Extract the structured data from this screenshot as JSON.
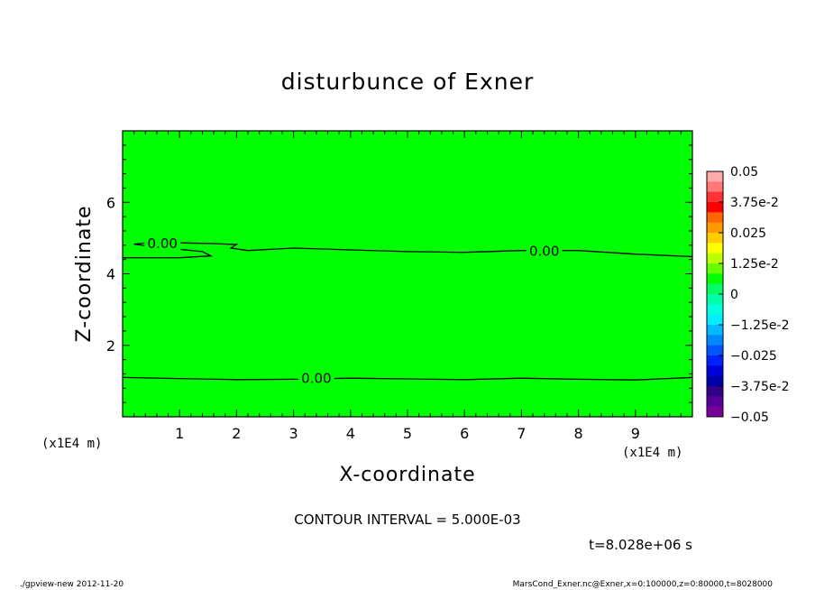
{
  "chart_data": {
    "type": "heatmap",
    "title": "disturbunce of Exner",
    "xlabel": "X-coordinate",
    "ylabel": "Z-coordinate",
    "x_unit": "(x1E4 m)",
    "y_unit": "(x1E4 m)",
    "xlim": [
      0,
      10
    ],
    "ylim": [
      0,
      8
    ],
    "xticks": [
      "1",
      "2",
      "3",
      "4",
      "5",
      "6",
      "7",
      "8",
      "9"
    ],
    "yticks": [
      "2",
      "4",
      "6"
    ],
    "field_value": 0,
    "field_color": "#00ff00",
    "contour_interval_text": "CONTOUR INTERVAL = 5.000E-03",
    "contours": [
      {
        "label": "0.00",
        "points": [
          [
            0.0,
            1.1
          ],
          [
            1.0,
            1.07
          ],
          [
            2.0,
            1.04
          ],
          [
            3.0,
            1.05
          ],
          [
            4.0,
            1.08
          ],
          [
            5.0,
            1.06
          ],
          [
            6.0,
            1.04
          ],
          [
            7.0,
            1.08
          ],
          [
            8.0,
            1.05
          ],
          [
            9.0,
            1.03
          ],
          [
            10.0,
            1.1
          ]
        ]
      },
      {
        "label": "0.00",
        "points": [
          [
            0.0,
            4.45
          ],
          [
            1.0,
            4.45
          ],
          [
            1.55,
            4.5
          ],
          [
            1.4,
            4.62
          ],
          [
            0.6,
            4.75
          ],
          [
            0.2,
            4.83
          ],
          [
            0.5,
            4.88
          ],
          [
            1.5,
            4.85
          ],
          [
            2.0,
            4.82
          ],
          [
            1.9,
            4.72
          ],
          [
            2.2,
            4.65
          ],
          [
            3.0,
            4.72
          ],
          [
            4.0,
            4.67
          ],
          [
            5.0,
            4.62
          ],
          [
            6.0,
            4.6
          ],
          [
            7.0,
            4.65
          ],
          [
            8.0,
            4.65
          ],
          [
            9.0,
            4.55
          ],
          [
            10.0,
            4.48
          ]
        ]
      }
    ],
    "colorbar": {
      "labels": [
        "0.05",
        "3.75e-2",
        "0.025",
        "1.25e-2",
        "0",
        "−1.25e-2",
        "−0.025",
        "−3.75e-2",
        "−0.05"
      ],
      "colors_top_to_bottom": [
        "#ffaaaa",
        "#ff7777",
        "#ff3333",
        "#ff0000",
        "#ff6600",
        "#ff9900",
        "#ffcc00",
        "#ffff00",
        "#bbff00",
        "#66ff00",
        "#00ff00",
        "#00ff66",
        "#00ffaa",
        "#00ffdd",
        "#00eeff",
        "#00bbff",
        "#0088ff",
        "#0055ff",
        "#0022ff",
        "#0000dd",
        "#0000aa",
        "#330088",
        "#550099",
        "#770099"
      ]
    }
  },
  "time_label": "t=8.028e+06 s",
  "footer": {
    "left": "./gpview-new  2012-11-20",
    "right": "MarsCond_Exner.nc@Exner,x=0:100000,z=0:80000,t=8028000"
  }
}
